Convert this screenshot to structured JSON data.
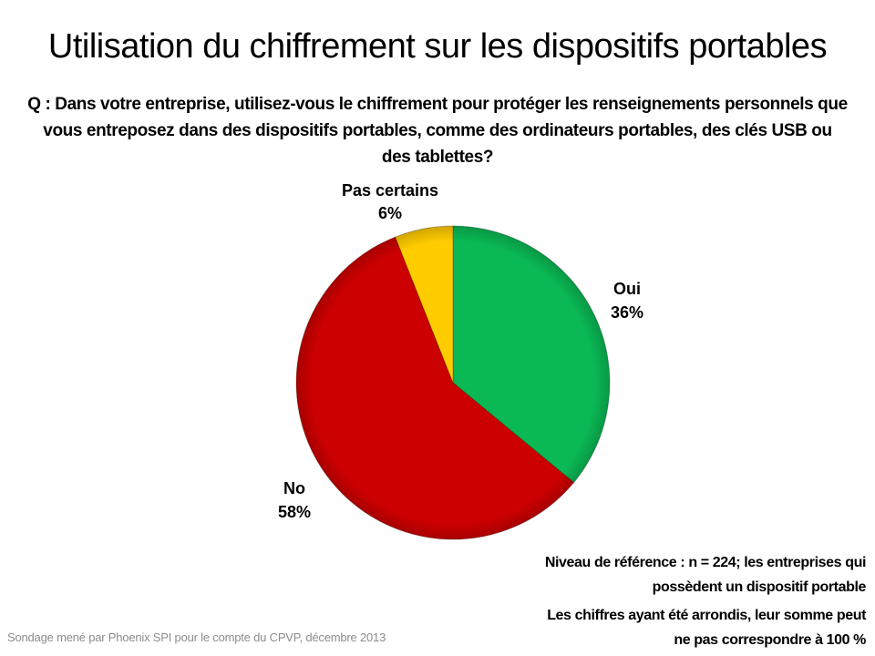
{
  "title": "Utilisation du chiffrement sur les dispositifs portables",
  "question": "Q : Dans votre entreprise, utilisez-vous le chiffrement pour protéger les renseignements personnels que vous entreposez dans des dispositifs portables, comme des ordinateurs portables, des clés USB ou des tablettes?",
  "chart_data": {
    "type": "pie",
    "title": "",
    "categories": [
      "Oui",
      "No",
      "Pas certains"
    ],
    "values": [
      36,
      58,
      6
    ],
    "labels": [
      "36%",
      "58%",
      "6%"
    ],
    "colors": [
      "#0ab954",
      "#cc0000",
      "#ffcc00"
    ],
    "start_angle": "12 o'clock, clockwise"
  },
  "notes": {
    "base_line1": "Niveau de référence : n = 224; les entreprises qui",
    "base_line2": "possèdent un dispositif portable",
    "rounding_line1": "Les chiffres ayant été arrondis,  leur somme peut",
    "rounding_line2": "ne pas correspondre  à 100 %"
  },
  "source": "Sondage mené par Phoenix SPI pour  le compte du CPVP, décembre  2013"
}
